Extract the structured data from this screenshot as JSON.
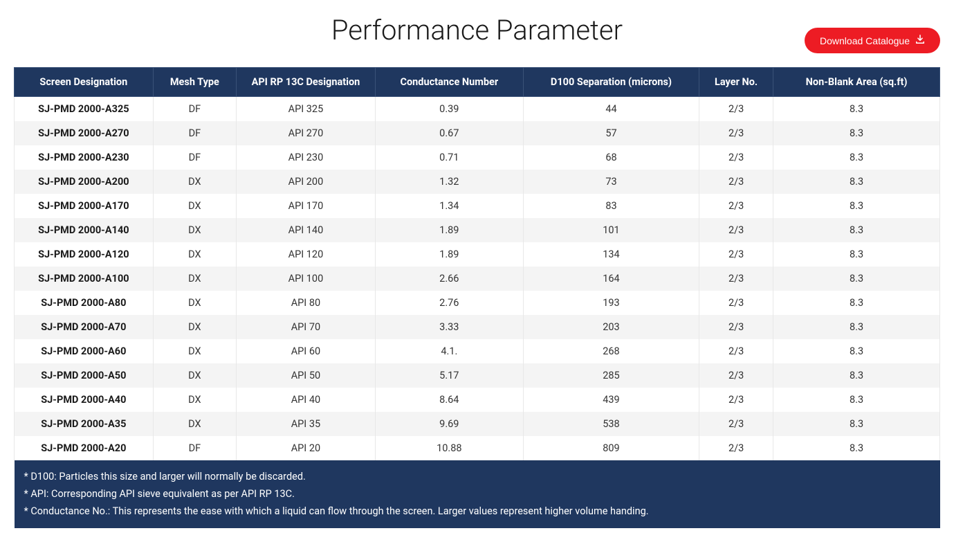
{
  "header": {
    "title": "Performance Parameter",
    "download_label": "Download Catalogue"
  },
  "table": {
    "columns": [
      "Screen Designation",
      "Mesh Type",
      "API RP 13C Designation",
      "Conductance Number",
      "D100 Separation (microns)",
      "Layer No.",
      "Non-Blank Area (sq.ft)"
    ],
    "rows": [
      [
        "SJ-PMD 2000-A325",
        "DF",
        "API 325",
        "0.39",
        "44",
        "2/3",
        "8.3"
      ],
      [
        "SJ-PMD 2000-A270",
        "DF",
        "API 270",
        "0.67",
        "57",
        "2/3",
        "8.3"
      ],
      [
        "SJ-PMD 2000-A230",
        "DF",
        "API 230",
        "0.71",
        "68",
        "2/3",
        "8.3"
      ],
      [
        "SJ-PMD 2000-A200",
        "DX",
        "API 200",
        "1.32",
        "73",
        "2/3",
        "8.3"
      ],
      [
        "SJ-PMD 2000-A170",
        "DX",
        "API 170",
        "1.34",
        "83",
        "2/3",
        "8.3"
      ],
      [
        "SJ-PMD 2000-A140",
        "DX",
        "API 140",
        "1.89",
        "101",
        "2/3",
        "8.3"
      ],
      [
        "SJ-PMD 2000-A120",
        "DX",
        "API 120",
        "1.89",
        "134",
        "2/3",
        "8.3"
      ],
      [
        "SJ-PMD 2000-A100",
        "DX",
        "API 100",
        "2.66",
        "164",
        "2/3",
        "8.3"
      ],
      [
        "SJ-PMD 2000-A80",
        "DX",
        "API 80",
        "2.76",
        "193",
        "2/3",
        "8.3"
      ],
      [
        "SJ-PMD 2000-A70",
        "DX",
        "API 70",
        "3.33",
        "203",
        "2/3",
        "8.3"
      ],
      [
        "SJ-PMD 2000-A60",
        "DX",
        "API 60",
        "4.1.",
        "268",
        "2/3",
        "8.3"
      ],
      [
        "SJ-PMD 2000-A50",
        "DX",
        "API 50",
        "5.17",
        "285",
        "2/3",
        "8.3"
      ],
      [
        "SJ-PMD 2000-A40",
        "DX",
        "API 40",
        "8.64",
        "439",
        "2/3",
        "8.3"
      ],
      [
        "SJ-PMD 2000-A35",
        "DX",
        "API 35",
        "9.69",
        "538",
        "2/3",
        "8.3"
      ],
      [
        "SJ-PMD 2000-A20",
        "DF",
        "API 20",
        "10.88",
        "809",
        "2/3",
        "8.3"
      ]
    ],
    "footnotes": [
      "* D100: Particles this size and larger will normally be discarded.",
      "* API: Corresponding API sieve equivalent as per API RP 13C.",
      "* Conductance No.: This represents the ease with which a liquid can flow through the screen. Larger values represent higher volume handing."
    ]
  },
  "styling": {
    "header_bg": "#1f375f",
    "header_text": "#ffffff",
    "row_odd_bg": "#ffffff",
    "row_even_bg": "#f4f4f4",
    "button_bg": "#ed1c24",
    "button_text": "#ffffff",
    "title_color": "#1a1a1a",
    "title_fontsize": 40,
    "title_fontweight": 300,
    "cell_fontsize": 14.5,
    "footnote_bg": "#1f375f",
    "footnote_text": "#ffffff"
  }
}
